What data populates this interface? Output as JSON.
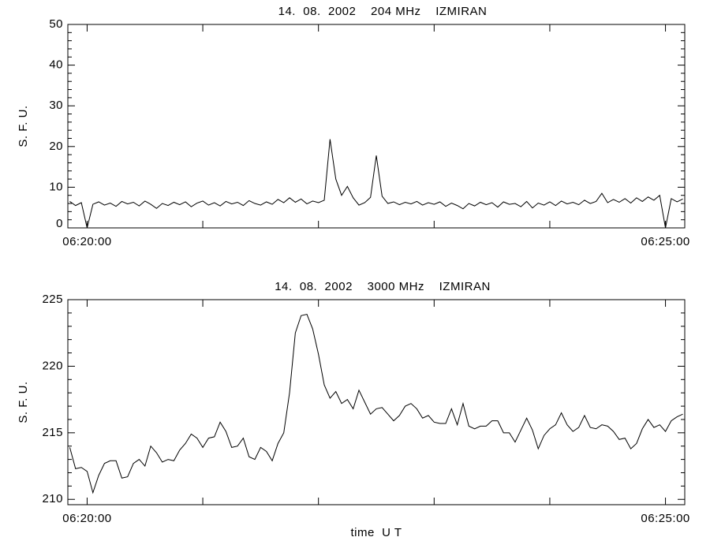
{
  "chart_data": [
    {
      "type": "line",
      "title": "14.  08.  2002    204 MHz    IZMIRAN",
      "ylabel": "S. F. U.",
      "xlim": [
        -10,
        310
      ],
      "xticks": [
        {
          "value": 0,
          "label": "06:20:00"
        },
        {
          "value": 300,
          "label": "06:25:00"
        }
      ],
      "xminorticks": [
        60,
        120,
        180,
        240
      ],
      "ylim": [
        0,
        50
      ],
      "yticks": [
        0,
        10,
        20,
        30,
        40,
        50
      ],
      "yminorticks": [
        2,
        4,
        6,
        8,
        12,
        14,
        16,
        18,
        22,
        24,
        26,
        28,
        32,
        34,
        36,
        38,
        42,
        44,
        46,
        48
      ],
      "color": "#000000",
      "x": [
        -9,
        -6,
        -3,
        0,
        3,
        6,
        9,
        12,
        15,
        18,
        21,
        24,
        27,
        30,
        33,
        36,
        39,
        42,
        45,
        48,
        51,
        54,
        57,
        60,
        63,
        66,
        69,
        72,
        75,
        78,
        81,
        84,
        87,
        90,
        93,
        96,
        99,
        102,
        105,
        108,
        111,
        114,
        117,
        120,
        123,
        126,
        129,
        132,
        135,
        138,
        141,
        144,
        147,
        150,
        153,
        156,
        159,
        162,
        165,
        168,
        171,
        174,
        177,
        180,
        183,
        186,
        189,
        192,
        195,
        198,
        201,
        204,
        207,
        210,
        213,
        216,
        219,
        222,
        225,
        228,
        231,
        234,
        237,
        240,
        243,
        246,
        249,
        252,
        255,
        258,
        261,
        264,
        267,
        270,
        273,
        276,
        279,
        282,
        285,
        288,
        291,
        294,
        297,
        300,
        303,
        306,
        309
      ],
      "values": [
        6.5,
        5.5,
        6.2,
        0,
        5.8,
        6.4,
        5.6,
        6.1,
        5.3,
        6.5,
        5.9,
        6.3,
        5.4,
        6.6,
        5.8,
        4.8,
        6.0,
        5.5,
        6.3,
        5.7,
        6.4,
        5.2,
        6.1,
        6.6,
        5.6,
        6.2,
        5.4,
        6.5,
        5.9,
        6.3,
        5.5,
        6.7,
        6.0,
        5.6,
        6.4,
        5.8,
        7.0,
        6.2,
        7.4,
        6.3,
        7.1,
        5.9,
        6.6,
        6.2,
        6.8,
        21.8,
        12.0,
        8.0,
        10.2,
        7.4,
        5.6,
        6.2,
        7.5,
        17.8,
        7.8,
        6.0,
        6.4,
        5.7,
        6.3,
        5.9,
        6.5,
        5.6,
        6.2,
        5.8,
        6.4,
        5.3,
        6.1,
        5.5,
        4.7,
        6.0,
        5.4,
        6.3,
        5.7,
        6.2,
        5.1,
        6.4,
        5.8,
        6.0,
        5.2,
        6.5,
        4.9,
        6.1,
        5.6,
        6.4,
        5.5,
        6.6,
        5.9,
        6.3,
        5.7,
        6.8,
        6.0,
        6.5,
        8.5,
        6.2,
        7.0,
        6.3,
        7.2,
        6.1,
        7.4,
        6.5,
        7.6,
        6.8,
        8.0,
        0,
        7.2,
        6.4,
        7.1
      ]
    },
    {
      "type": "line",
      "title": "14.  08.  2002    3000 MHz    IZMIRAN",
      "ylabel": "S. F. U.",
      "xlabel": "time  U T",
      "xlim": [
        -10,
        310
      ],
      "xticks": [
        {
          "value": 0,
          "label": "06:20:00"
        },
        {
          "value": 300,
          "label": "06:25:00"
        }
      ],
      "xminorticks": [
        60,
        120,
        180,
        240
      ],
      "ylim": [
        209.6,
        225
      ],
      "yticks": [
        210,
        215,
        220,
        225
      ],
      "yminorticks": [
        211,
        212,
        213,
        214,
        216,
        217,
        218,
        219,
        221,
        222,
        223,
        224
      ],
      "color": "#000000",
      "x": [
        -9,
        -6,
        -3,
        0,
        3,
        6,
        9,
        12,
        15,
        18,
        21,
        24,
        27,
        30,
        33,
        36,
        39,
        42,
        45,
        48,
        51,
        54,
        57,
        60,
        63,
        66,
        69,
        72,
        75,
        78,
        81,
        84,
        87,
        90,
        93,
        96,
        99,
        102,
        105,
        108,
        111,
        114,
        117,
        120,
        123,
        126,
        129,
        132,
        135,
        138,
        141,
        144,
        147,
        150,
        153,
        156,
        159,
        162,
        165,
        168,
        171,
        174,
        177,
        180,
        183,
        186,
        189,
        192,
        195,
        198,
        201,
        204,
        207,
        210,
        213,
        216,
        219,
        222,
        225,
        228,
        231,
        234,
        237,
        240,
        243,
        246,
        249,
        252,
        255,
        258,
        261,
        264,
        267,
        270,
        273,
        276,
        279,
        282,
        285,
        288,
        291,
        294,
        297,
        300,
        303,
        306,
        309
      ],
      "values": [
        213.9,
        212.3,
        212.4,
        212.1,
        210.5,
        211.8,
        212.7,
        212.9,
        212.9,
        211.6,
        211.7,
        212.7,
        213.0,
        212.5,
        214.0,
        213.5,
        212.8,
        213.0,
        212.9,
        213.7,
        214.2,
        214.9,
        214.6,
        213.9,
        214.6,
        214.7,
        215.8,
        215.1,
        213.9,
        214.0,
        214.6,
        213.2,
        213.0,
        213.9,
        213.6,
        212.9,
        214.2,
        215.0,
        218.0,
        222.5,
        223.8,
        223.9,
        222.8,
        220.9,
        218.6,
        217.6,
        218.1,
        217.2,
        217.5,
        216.8,
        218.2,
        217.3,
        216.4,
        216.8,
        216.9,
        216.4,
        215.9,
        216.3,
        217.0,
        217.2,
        216.8,
        216.1,
        216.3,
        215.8,
        215.7,
        215.7,
        216.8,
        215.6,
        217.2,
        215.5,
        215.3,
        215.5,
        215.5,
        215.9,
        215.9,
        215.0,
        215.0,
        214.3,
        215.2,
        216.1,
        215.2,
        213.8,
        214.8,
        215.3,
        215.6,
        216.5,
        215.6,
        215.1,
        215.4,
        216.3,
        215.4,
        215.3,
        215.6,
        215.5,
        215.1,
        214.5,
        214.6,
        213.8,
        214.2,
        215.3,
        216.0,
        215.4,
        215.6,
        215.1,
        215.9,
        216.2,
        216.4
      ]
    }
  ]
}
